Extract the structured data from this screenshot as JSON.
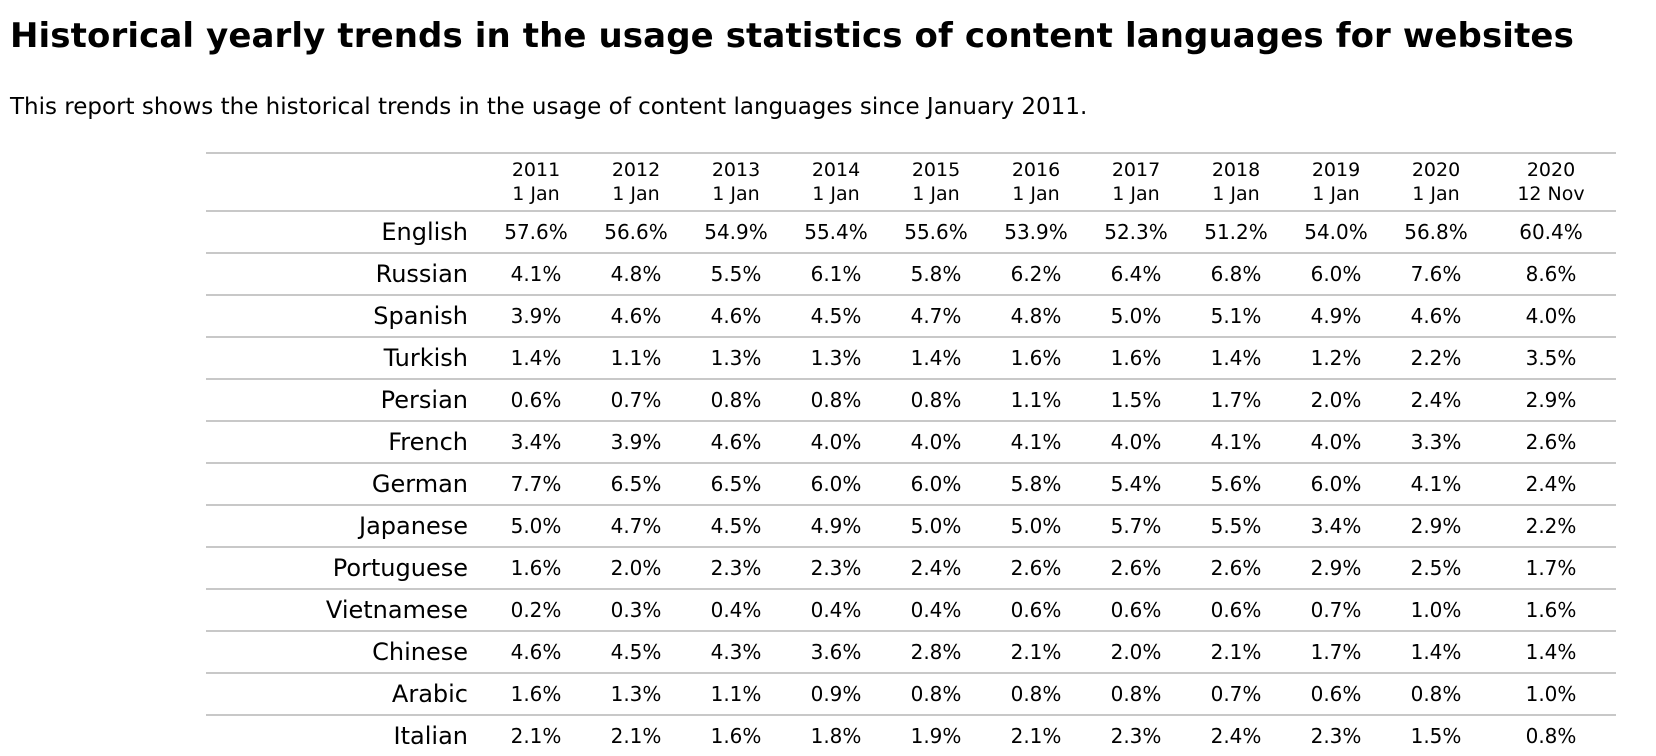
{
  "title": "Historical yearly trends in the usage statistics of content languages for websites",
  "intro": "This report shows the historical trends in the usage of content languages since January 2011.",
  "table": {
    "columns": [
      {
        "year": "2011",
        "date": "1 Jan"
      },
      {
        "year": "2012",
        "date": "1 Jan"
      },
      {
        "year": "2013",
        "date": "1 Jan"
      },
      {
        "year": "2014",
        "date": "1 Jan"
      },
      {
        "year": "2015",
        "date": "1 Jan"
      },
      {
        "year": "2016",
        "date": "1 Jan"
      },
      {
        "year": "2017",
        "date": "1 Jan"
      },
      {
        "year": "2018",
        "date": "1 Jan"
      },
      {
        "year": "2019",
        "date": "1 Jan"
      },
      {
        "year": "2020",
        "date": "1 Jan"
      },
      {
        "year": "2020",
        "date": "12 Nov"
      }
    ],
    "rows": [
      {
        "language": "English",
        "values": [
          "57.6%",
          "56.6%",
          "54.9%",
          "55.4%",
          "55.6%",
          "53.9%",
          "52.3%",
          "51.2%",
          "54.0%",
          "56.8%",
          "60.4%"
        ]
      },
      {
        "language": "Russian",
        "values": [
          "4.1%",
          "4.8%",
          "5.5%",
          "6.1%",
          "5.8%",
          "6.2%",
          "6.4%",
          "6.8%",
          "6.0%",
          "7.6%",
          "8.6%"
        ]
      },
      {
        "language": "Spanish",
        "values": [
          "3.9%",
          "4.6%",
          "4.6%",
          "4.5%",
          "4.7%",
          "4.8%",
          "5.0%",
          "5.1%",
          "4.9%",
          "4.6%",
          "4.0%"
        ]
      },
      {
        "language": "Turkish",
        "values": [
          "1.4%",
          "1.1%",
          "1.3%",
          "1.3%",
          "1.4%",
          "1.6%",
          "1.6%",
          "1.4%",
          "1.2%",
          "2.2%",
          "3.5%"
        ]
      },
      {
        "language": "Persian",
        "values": [
          "0.6%",
          "0.7%",
          "0.8%",
          "0.8%",
          "0.8%",
          "1.1%",
          "1.5%",
          "1.7%",
          "2.0%",
          "2.4%",
          "2.9%"
        ]
      },
      {
        "language": "French",
        "values": [
          "3.4%",
          "3.9%",
          "4.6%",
          "4.0%",
          "4.0%",
          "4.1%",
          "4.0%",
          "4.1%",
          "4.0%",
          "3.3%",
          "2.6%"
        ]
      },
      {
        "language": "German",
        "values": [
          "7.7%",
          "6.5%",
          "6.5%",
          "6.0%",
          "6.0%",
          "5.8%",
          "5.4%",
          "5.6%",
          "6.0%",
          "4.1%",
          "2.4%"
        ]
      },
      {
        "language": "Japanese",
        "values": [
          "5.0%",
          "4.7%",
          "4.5%",
          "4.9%",
          "5.0%",
          "5.0%",
          "5.7%",
          "5.5%",
          "3.4%",
          "2.9%",
          "2.2%"
        ]
      },
      {
        "language": "Portuguese",
        "values": [
          "1.6%",
          "2.0%",
          "2.3%",
          "2.3%",
          "2.4%",
          "2.6%",
          "2.6%",
          "2.6%",
          "2.9%",
          "2.5%",
          "1.7%"
        ]
      },
      {
        "language": "Vietnamese",
        "values": [
          "0.2%",
          "0.3%",
          "0.4%",
          "0.4%",
          "0.4%",
          "0.6%",
          "0.6%",
          "0.6%",
          "0.7%",
          "1.0%",
          "1.6%"
        ]
      },
      {
        "language": "Chinese",
        "values": [
          "4.6%",
          "4.5%",
          "4.3%",
          "3.6%",
          "2.8%",
          "2.1%",
          "2.0%",
          "2.1%",
          "1.7%",
          "1.4%",
          "1.4%"
        ]
      },
      {
        "language": "Arabic",
        "values": [
          "1.6%",
          "1.3%",
          "1.1%",
          "0.9%",
          "0.8%",
          "0.8%",
          "0.8%",
          "0.7%",
          "0.6%",
          "0.8%",
          "1.0%"
        ]
      },
      {
        "language": "Italian",
        "values": [
          "2.1%",
          "2.1%",
          "1.6%",
          "1.8%",
          "1.9%",
          "2.1%",
          "2.3%",
          "2.4%",
          "2.3%",
          "1.5%",
          "0.8%"
        ]
      }
    ]
  },
  "colors": {
    "text": "#000000",
    "rule": "#c8c8c8",
    "background": "#ffffff"
  }
}
